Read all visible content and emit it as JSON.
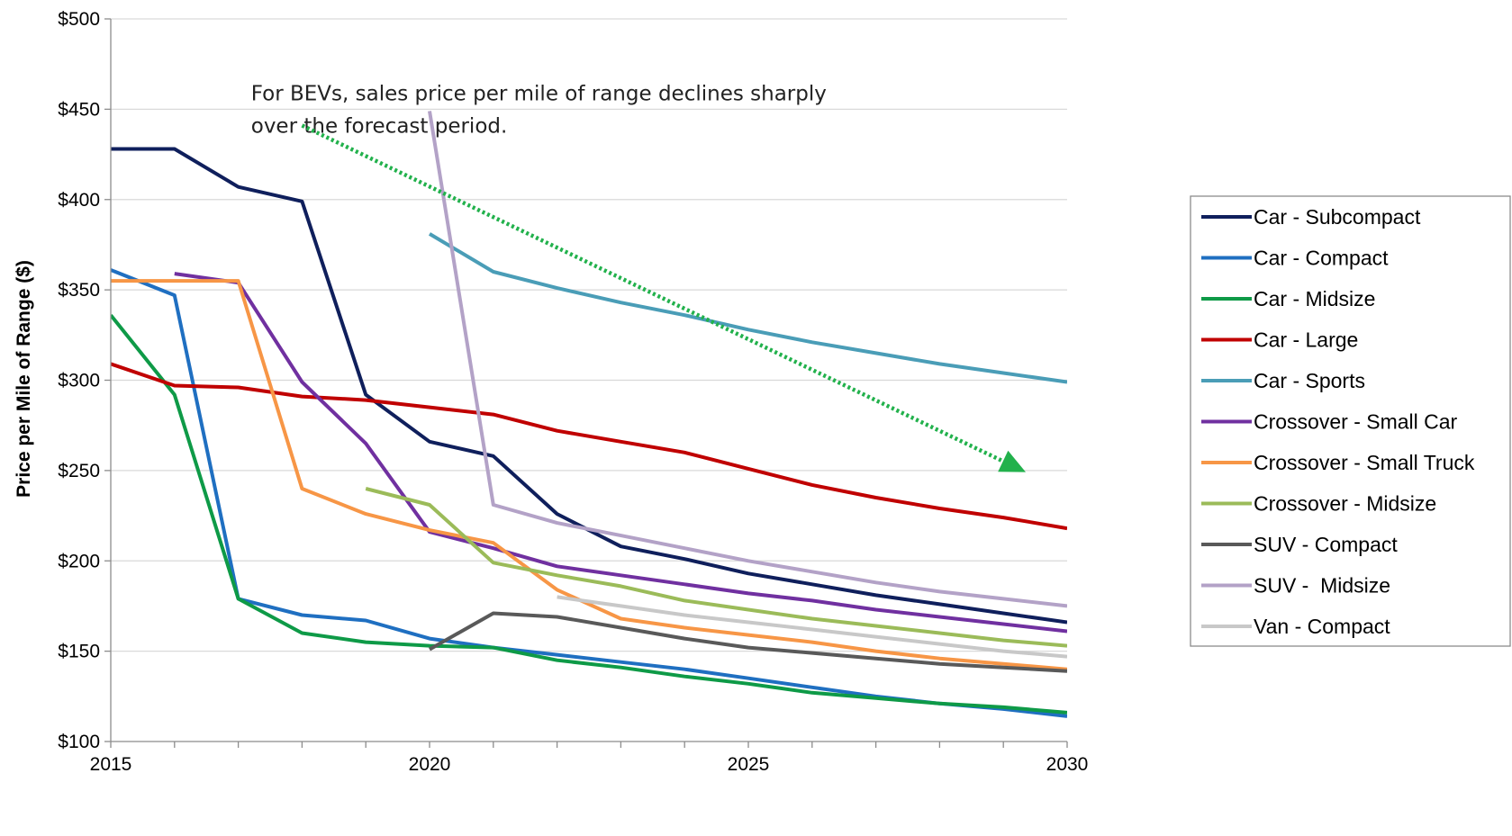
{
  "chart_data": {
    "type": "line",
    "title": "",
    "xlabel": "",
    "ylabel": "Price per Mile of Range ($)",
    "xlim": [
      2015,
      2030
    ],
    "ylim": [
      100,
      500
    ],
    "x_ticks": [
      2015,
      2020,
      2025,
      2030
    ],
    "x_tick_labels": [
      "2015",
      "2020",
      "2025",
      "2030"
    ],
    "y_ticks": [
      100,
      150,
      200,
      250,
      300,
      350,
      400,
      450,
      500
    ],
    "y_tick_labels": [
      "$100",
      "$150",
      "$200",
      "$250",
      "$300",
      "$350",
      "$400",
      "$450",
      "$500"
    ],
    "grid": "horizontal",
    "legend_position": "right",
    "annotation": {
      "lines": [
        "For BEVs, sales price per mile of range declines sharply",
        "over the forecast period."
      ],
      "x": 2017.2,
      "y": 455
    },
    "trend_arrow": {
      "from": [
        2018,
        441
      ],
      "to": [
        2029.3,
        250
      ],
      "color": "#22b14c",
      "style": "dotted"
    },
    "series": [
      {
        "name": "Car - Subcompact",
        "color": "#0f1f5c",
        "x": [
          2015,
          2016,
          2017,
          2018,
          2019,
          2020,
          2021,
          2022,
          2023,
          2024,
          2025,
          2026,
          2027,
          2028,
          2029,
          2030
        ],
        "y": [
          428,
          428,
          407,
          399,
          292,
          266,
          258,
          226,
          208,
          201,
          193,
          187,
          181,
          176,
          171,
          166
        ]
      },
      {
        "name": "Car - Compact",
        "color": "#1f6fc1",
        "x": [
          2015,
          2016,
          2017,
          2018,
          2019,
          2020,
          2021,
          2022,
          2023,
          2024,
          2025,
          2026,
          2027,
          2028,
          2029,
          2030
        ],
        "y": [
          361,
          347,
          179,
          170,
          167,
          157,
          152,
          148,
          144,
          140,
          135,
          130,
          125,
          121,
          118,
          114
        ]
      },
      {
        "name": "Car - Midsize",
        "color": "#0e9a47",
        "x": [
          2015,
          2016,
          2017,
          2018,
          2019,
          2020,
          2021,
          2022,
          2023,
          2024,
          2025,
          2026,
          2027,
          2028,
          2029,
          2030
        ],
        "y": [
          336,
          292,
          179,
          160,
          155,
          153,
          152,
          145,
          141,
          136,
          132,
          127,
          124,
          121,
          119,
          116
        ]
      },
      {
        "name": "Car - Large",
        "color": "#c00000",
        "x": [
          2015,
          2016,
          2017,
          2018,
          2019,
          2020,
          2021,
          2022,
          2023,
          2024,
          2025,
          2026,
          2027,
          2028,
          2029,
          2030
        ],
        "y": [
          309,
          297,
          296,
          291,
          289,
          285,
          281,
          272,
          266,
          260,
          251,
          242,
          235,
          229,
          224,
          218
        ]
      },
      {
        "name": "Car - Sports",
        "color": "#4a9db7",
        "x": [
          2020,
          2021,
          2022,
          2023,
          2024,
          2025,
          2026,
          2027,
          2028,
          2029,
          2030
        ],
        "y": [
          381,
          360,
          351,
          343,
          336,
          328,
          321,
          315,
          309,
          304,
          299
        ]
      },
      {
        "name": "Crossover - Small Car",
        "color": "#7030a0",
        "x": [
          2016,
          2017,
          2018,
          2019,
          2020,
          2021,
          2022,
          2023,
          2024,
          2025,
          2026,
          2027,
          2028,
          2029,
          2030
        ],
        "y": [
          359,
          354,
          299,
          265,
          216,
          207,
          197,
          192,
          187,
          182,
          178,
          173,
          169,
          165,
          161
        ]
      },
      {
        "name": "Crossover - Small Truck",
        "color": "#f79646",
        "x": [
          2015,
          2016,
          2017,
          2018,
          2019,
          2020,
          2021,
          2022,
          2023,
          2024,
          2025,
          2026,
          2027,
          2028,
          2029,
          2030
        ],
        "y": [
          355,
          355,
          355,
          240,
          226,
          217,
          210,
          184,
          168,
          163,
          159,
          155,
          150,
          146,
          143,
          140
        ]
      },
      {
        "name": "Crossover - Midsize",
        "color": "#9bbb59",
        "x": [
          2019,
          2020,
          2021,
          2022,
          2023,
          2024,
          2025,
          2026,
          2027,
          2028,
          2029,
          2030
        ],
        "y": [
          240,
          231,
          199,
          192,
          186,
          178,
          173,
          168,
          164,
          160,
          156,
          153
        ]
      },
      {
        "name": "SUV - Compact",
        "color": "#595959",
        "x": [
          2020,
          2021,
          2022,
          2023,
          2024,
          2025,
          2026,
          2027,
          2028,
          2029,
          2030
        ],
        "y": [
          151,
          171,
          169,
          163,
          157,
          152,
          149,
          146,
          143,
          141,
          139
        ]
      },
      {
        "name": "SUV -  Midsize",
        "color": "#b3a2c7",
        "x": [
          2020,
          2021,
          2022,
          2023,
          2024,
          2025,
          2026,
          2027,
          2028,
          2029,
          2030
        ],
        "y": [
          449,
          231,
          221,
          214,
          207,
          200,
          194,
          188,
          183,
          179,
          175
        ]
      },
      {
        "name": "Van - Compact",
        "color": "#c8c8c8",
        "x": [
          2022,
          2023,
          2024,
          2025,
          2026,
          2027,
          2028,
          2029,
          2030
        ],
        "y": [
          180,
          175,
          170,
          166,
          162,
          158,
          154,
          150,
          147
        ]
      }
    ]
  }
}
